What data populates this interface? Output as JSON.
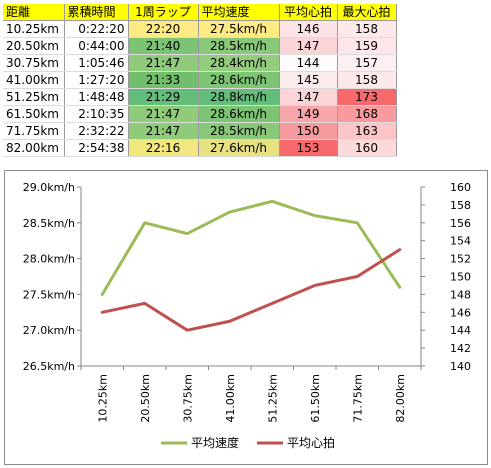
{
  "table": {
    "headers": [
      "距離",
      "累積時間",
      "1周ラップ",
      "平均速度",
      "平均心拍",
      "最大心拍"
    ],
    "rows": [
      [
        "10.25km",
        "0:22:20",
        "22:20",
        "27.5km/h",
        "146",
        "158"
      ],
      [
        "20.50km",
        "0:44:00",
        "21:40",
        "28.5km/h",
        "147",
        "159"
      ],
      [
        "30.75km",
        "1:05:46",
        "21:47",
        "28.4km/h",
        "144",
        "157"
      ],
      [
        "41.00km",
        "1:27:20",
        "21:33",
        "28.6km/h",
        "145",
        "158"
      ],
      [
        "51.25km",
        "1:48:48",
        "21:29",
        "28.8km/h",
        "147",
        "173"
      ],
      [
        "61.50km",
        "2:10:35",
        "21:47",
        "28.6km/h",
        "149",
        "168"
      ],
      [
        "71.75km",
        "2:32:22",
        "21:47",
        "28.5km/h",
        "150",
        "163"
      ],
      [
        "82.00km",
        "2:54:38",
        "22:16",
        "27.6km/h",
        "153",
        "160"
      ]
    ],
    "cell_colors": [
      [
        "#ffffff",
        "#ffffff",
        "#ffeb84",
        "#ffeb84",
        "#fbe3e6",
        "#fde8ea"
      ],
      [
        "#ffffff",
        "#ffffff",
        "#7cc474",
        "#88c878",
        "#fad4d7",
        "#fde7ea"
      ],
      [
        "#ffffff",
        "#ffffff",
        "#90cb7c",
        "#94cc7d",
        "#fdfbfc",
        "#fdf0f2"
      ],
      [
        "#ffffff",
        "#ffffff",
        "#71bf6d",
        "#7dc474",
        "#fcebed",
        "#fde8ea"
      ],
      [
        "#ffffff",
        "#ffffff",
        "#63be7b",
        "#63be7b",
        "#fad4d7",
        "#f8696b"
      ],
      [
        "#ffffff",
        "#ffffff",
        "#90cb7c",
        "#7dc474",
        "#f7a7ab",
        "#f99a9e"
      ],
      [
        "#ffffff",
        "#ffffff",
        "#90cb7c",
        "#88c878",
        "#f69a9d",
        "#fbc5c8"
      ],
      [
        "#ffffff",
        "#ffffff",
        "#f2e67f",
        "#e8e182",
        "#f8696b",
        "#fdd9dc"
      ]
    ],
    "header_color": "#ffff00"
  },
  "chart_data": {
    "type": "line",
    "categories": [
      "10.25km",
      "20.50km",
      "30.75km",
      "41.00km",
      "51.25km",
      "61.50km",
      "71.75km",
      "82.00km"
    ],
    "series": [
      {
        "name": "平均速度",
        "axis": "left",
        "color": "#9bbb59",
        "values": [
          27.5,
          28.5,
          28.35,
          28.65,
          28.8,
          28.6,
          28.5,
          27.6
        ]
      },
      {
        "name": "平均心拍",
        "axis": "right",
        "color": "#c0504d",
        "values": [
          146,
          147,
          144,
          145,
          147,
          149,
          150,
          153
        ]
      }
    ],
    "left_axis": {
      "min": 26.5,
      "max": 29.0,
      "ticks": [
        "26.5km/h",
        "27.0km/h",
        "27.5km/h",
        "28.0km/h",
        "28.5km/h",
        "29.0km/h"
      ]
    },
    "right_axis": {
      "min": 140,
      "max": 160,
      "ticks": [
        "140",
        "142",
        "144",
        "146",
        "148",
        "150",
        "152",
        "154",
        "156",
        "158",
        "160"
      ]
    },
    "grid": false,
    "legend": "bottom"
  }
}
